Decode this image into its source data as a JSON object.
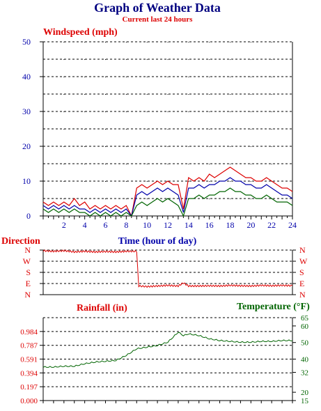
{
  "title": "Graph of Weather Data",
  "subtitle": "Current last 24 hours",
  "colors": {
    "title": "#000080",
    "red": "#dd0000",
    "navy": "#0000aa",
    "green": "#006400",
    "grid": "#000000"
  },
  "chart_data": [
    {
      "type": "line",
      "title": "Windspeed (mph)",
      "xlabel": "Time (hour of day)",
      "xlim": [
        0,
        24
      ],
      "ylim": [
        0,
        50
      ],
      "y_ticks": [
        "0",
        "10",
        "20",
        "30",
        "40",
        "50"
      ],
      "x_ticks": [
        "2",
        "4",
        "6",
        "8",
        "10",
        "12",
        "14",
        "16",
        "18",
        "20",
        "22",
        "24"
      ],
      "grid": true,
      "x": [
        0,
        0.5,
        1,
        1.5,
        2,
        2.5,
        3,
        3.5,
        4,
        4.5,
        5,
        5.5,
        6,
        6.5,
        7,
        7.5,
        8,
        8.5,
        9,
        9.5,
        10,
        10.5,
        11,
        11.5,
        12,
        12.5,
        13,
        13.5,
        14,
        14.5,
        15,
        15.5,
        16,
        16.5,
        17,
        17.5,
        18,
        18.5,
        19,
        19.5,
        20,
        20.5,
        21,
        21.5,
        22,
        22.5,
        23,
        23.5,
        24
      ],
      "series": [
        {
          "color": "#dd0000",
          "values": [
            4,
            3,
            4,
            3,
            4,
            3,
            5,
            3,
            4,
            2,
            3,
            2,
            3,
            2,
            3,
            2,
            3,
            0,
            8,
            9,
            8,
            9,
            10,
            9,
            10,
            9,
            9,
            2,
            11,
            10,
            11,
            10,
            12,
            11,
            12,
            13,
            14,
            13,
            12,
            11,
            11,
            10,
            10,
            11,
            10,
            9,
            8,
            8,
            7
          ]
        },
        {
          "color": "#0000aa",
          "values": [
            3,
            2,
            3,
            2,
            3,
            2,
            3,
            2,
            2,
            1,
            2,
            1,
            2,
            1,
            2,
            1,
            2,
            0,
            6,
            7,
            6,
            7,
            8,
            7,
            8,
            7,
            6,
            1,
            8,
            8,
            9,
            8,
            9,
            9,
            10,
            10,
            11,
            10,
            10,
            9,
            9,
            8,
            8,
            9,
            8,
            7,
            6,
            6,
            5
          ]
        },
        {
          "color": "#006400",
          "values": [
            2,
            1,
            2,
            1,
            2,
            1,
            2,
            1,
            1,
            0,
            1,
            0,
            1,
            0,
            1,
            0,
            1,
            0,
            3,
            4,
            3,
            4,
            5,
            4,
            5,
            4,
            3,
            0,
            5,
            5,
            6,
            5,
            6,
            6,
            7,
            7,
            8,
            7,
            7,
            6,
            6,
            5,
            5,
            6,
            5,
            4,
            4,
            4,
            3
          ]
        }
      ]
    },
    {
      "type": "line",
      "title": "Direction",
      "categories": [
        "N",
        "W",
        "S",
        "E",
        "N"
      ],
      "xlim": [
        0,
        24
      ],
      "note": "direction scale N(top)=360, W=270, S=180, E=90, N(bottom)=0",
      "x": [
        0,
        1,
        2,
        3,
        4,
        5,
        6,
        7,
        8,
        9,
        9.2,
        10,
        11,
        12,
        13,
        13.5,
        14,
        15,
        16,
        17,
        18,
        19,
        20,
        21,
        22,
        23,
        24
      ],
      "values": [
        355,
        350,
        355,
        345,
        350,
        345,
        348,
        345,
        350,
        350,
        70,
        65,
        70,
        75,
        70,
        95,
        70,
        70,
        72,
        70,
        75,
        72,
        70,
        75,
        72,
        75,
        72
      ],
      "color": "#dd0000"
    },
    {
      "type": "line",
      "title": "Rainfall (in)",
      "xlim": [
        0,
        24
      ],
      "ylim": [
        0,
        1.181
      ],
      "y_ticks_left": [
        "0.000",
        "0.197",
        "0.394",
        "0.591",
        "0.787",
        "0.984"
      ],
      "series": [
        {
          "name": "Temperature (°F)",
          "color": "#006400",
          "axis": "right",
          "ylim": [
            15,
            65
          ],
          "y_ticks_right": [
            "15",
            "20",
            "32",
            "40",
            "50",
            "60",
            "65"
          ],
          "x": [
            0,
            1,
            2,
            3,
            4,
            5,
            6,
            7,
            8,
            9,
            10,
            11,
            12,
            13,
            13.5,
            14,
            15,
            16,
            17,
            18,
            19,
            20,
            21,
            22,
            23,
            24
          ],
          "values": [
            35,
            35,
            35.5,
            35.5,
            37,
            38,
            38.5,
            39,
            42,
            46,
            47,
            48,
            50,
            56,
            54,
            55,
            54,
            52,
            51,
            50.5,
            50,
            50,
            50.5,
            50.5,
            51,
            51
          ]
        }
      ]
    }
  ]
}
